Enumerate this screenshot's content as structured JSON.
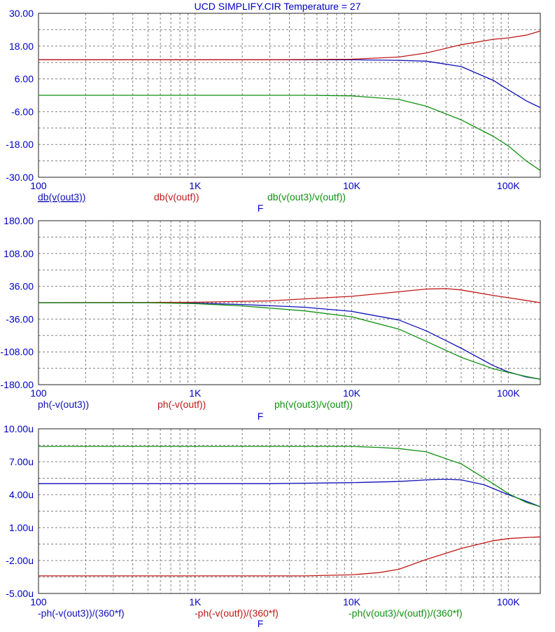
{
  "title": "UCD SIMPLIFY.CIR Temperature = 27",
  "colors": {
    "blue": "#1010b8",
    "red": "#c01818",
    "green": "#109010",
    "text": "#0000c0"
  },
  "chart_data": [
    {
      "type": "line",
      "x_scale": "log",
      "xlim": [
        100,
        160000
      ],
      "xlabel": "F",
      "x_ticks": [
        100,
        1000,
        10000,
        100000
      ],
      "x_tick_labels": [
        "100",
        "1K",
        "10K",
        "100K"
      ],
      "ylim": [
        -30,
        30
      ],
      "y_ticks": [
        30,
        18,
        6,
        -6,
        -18,
        -30
      ],
      "y_tick_labels": [
        "30.00",
        "18.00",
        "6.00",
        "-6.00",
        "-18.00",
        "-30.00"
      ],
      "grid": true,
      "legend_position": "below-plot",
      "series": [
        {
          "name": "db(v(out3))",
          "color": "blue",
          "underline": true,
          "points": [
            [
              100,
              13
            ],
            [
              3000,
              13
            ],
            [
              10000,
              13
            ],
            [
              20000,
              12.8
            ],
            [
              30000,
              12.5
            ],
            [
              50000,
              10.5
            ],
            [
              80000,
              5.5
            ],
            [
              100000,
              2
            ],
            [
              130000,
              -2
            ],
            [
              160000,
              -4.5
            ]
          ]
        },
        {
          "name": "db(v(outf))",
          "color": "red",
          "underline": false,
          "points": [
            [
              100,
              13
            ],
            [
              3000,
              13
            ],
            [
              10000,
              13.2
            ],
            [
              20000,
              14
            ],
            [
              30000,
              15.5
            ],
            [
              50000,
              18.5
            ],
            [
              80000,
              20.5
            ],
            [
              100000,
              21
            ],
            [
              130000,
              22
            ],
            [
              160000,
              23.5
            ]
          ]
        },
        {
          "name": "db(v(out3)/v(outf))",
          "color": "green",
          "underline": false,
          "points": [
            [
              100,
              0
            ],
            [
              5000,
              0
            ],
            [
              10000,
              -0.2
            ],
            [
              20000,
              -1.5
            ],
            [
              30000,
              -4
            ],
            [
              50000,
              -9
            ],
            [
              80000,
              -15
            ],
            [
              100000,
              -18.5
            ],
            [
              130000,
              -24
            ],
            [
              160000,
              -27.5
            ]
          ]
        }
      ]
    },
    {
      "type": "line",
      "x_scale": "log",
      "xlim": [
        100,
        160000
      ],
      "xlabel": "F",
      "x_ticks": [
        100,
        1000,
        10000,
        100000
      ],
      "x_tick_labels": [
        "100",
        "1K",
        "10K",
        "100K"
      ],
      "ylim": [
        -180,
        180
      ],
      "y_ticks": [
        180,
        108,
        36,
        -36,
        -108,
        -180
      ],
      "y_tick_labels": [
        "180.00",
        "108.00",
        "36.00",
        "-36.00",
        "-108.00",
        "-180.00"
      ],
      "grid": true,
      "legend_position": "below-plot",
      "series": [
        {
          "name": "ph(-v(out3))",
          "color": "blue",
          "underline": false,
          "points": [
            [
              100,
              0
            ],
            [
              500,
              0
            ],
            [
              1000,
              -1
            ],
            [
              2000,
              -4
            ],
            [
              5000,
              -10
            ],
            [
              10000,
              -19
            ],
            [
              20000,
              -38
            ],
            [
              30000,
              -62
            ],
            [
              50000,
              -100
            ],
            [
              80000,
              -138
            ],
            [
              100000,
              -152
            ],
            [
              130000,
              -163
            ],
            [
              160000,
              -168
            ]
          ]
        },
        {
          "name": "ph(-v(outf))",
          "color": "red",
          "underline": false,
          "points": [
            [
              100,
              0
            ],
            [
              1000,
              1
            ],
            [
              3000,
              4
            ],
            [
              10000,
              14
            ],
            [
              20000,
              24
            ],
            [
              30000,
              30
            ],
            [
              40000,
              31
            ],
            [
              50000,
              28
            ],
            [
              80000,
              16
            ],
            [
              100000,
              11
            ],
            [
              130000,
              5
            ],
            [
              160000,
              0
            ]
          ]
        },
        {
          "name": "ph(v(out3)/v(outf))",
          "color": "green",
          "underline": false,
          "points": [
            [
              100,
              0
            ],
            [
              500,
              0
            ],
            [
              1000,
              -2
            ],
            [
              2000,
              -7
            ],
            [
              5000,
              -18
            ],
            [
              10000,
              -31
            ],
            [
              20000,
              -58
            ],
            [
              30000,
              -85
            ],
            [
              50000,
              -120
            ],
            [
              80000,
              -145
            ],
            [
              100000,
              -153
            ],
            [
              130000,
              -162
            ],
            [
              160000,
              -168
            ]
          ]
        }
      ]
    },
    {
      "type": "line",
      "x_scale": "log",
      "xlim": [
        100,
        160000
      ],
      "xlabel": "F",
      "x_ticks": [
        100,
        1000,
        10000,
        100000
      ],
      "x_tick_labels": [
        "100",
        "1K",
        "10K",
        "100K"
      ],
      "ylim": [
        -5,
        10
      ],
      "y_ticks": [
        10,
        7,
        4,
        1,
        -2,
        -5
      ],
      "y_tick_labels": [
        "10.00u",
        "7.00u",
        "4.00u",
        "1.00u",
        "-2.00u",
        "-5.00u"
      ],
      "grid": true,
      "legend_position": "below-plot",
      "series": [
        {
          "name": "-ph(-v(out3))/(360*f)",
          "color": "blue",
          "underline": false,
          "points": [
            [
              100,
              5
            ],
            [
              3000,
              5
            ],
            [
              10000,
              5.1
            ],
            [
              20000,
              5.2
            ],
            [
              30000,
              5.35
            ],
            [
              40000,
              5.4
            ],
            [
              50000,
              5.35
            ],
            [
              70000,
              4.9
            ],
            [
              100000,
              4
            ],
            [
              130000,
              3.4
            ],
            [
              160000,
              2.9
            ]
          ]
        },
        {
          "name": "-ph(-v(outf))/(360*f)",
          "color": "red",
          "underline": false,
          "points": [
            [
              100,
              -3.4
            ],
            [
              5000,
              -3.4
            ],
            [
              10000,
              -3.3
            ],
            [
              15000,
              -3.1
            ],
            [
              20000,
              -2.8
            ],
            [
              30000,
              -1.9
            ],
            [
              50000,
              -0.9
            ],
            [
              80000,
              -0.2
            ],
            [
              100000,
              0
            ],
            [
              130000,
              0.1
            ],
            [
              160000,
              0.15
            ]
          ]
        },
        {
          "name": "-ph(v(out3)/v(outf))/(360*f)",
          "color": "green",
          "underline": false,
          "points": [
            [
              100,
              8.4
            ],
            [
              5000,
              8.4
            ],
            [
              10000,
              8.4
            ],
            [
              15000,
              8.3
            ],
            [
              20000,
              8.2
            ],
            [
              30000,
              7.9
            ],
            [
              50000,
              6.8
            ],
            [
              80000,
              5
            ],
            [
              100000,
              4.1
            ],
            [
              130000,
              3.3
            ],
            [
              160000,
              2.9
            ]
          ]
        }
      ]
    }
  ]
}
